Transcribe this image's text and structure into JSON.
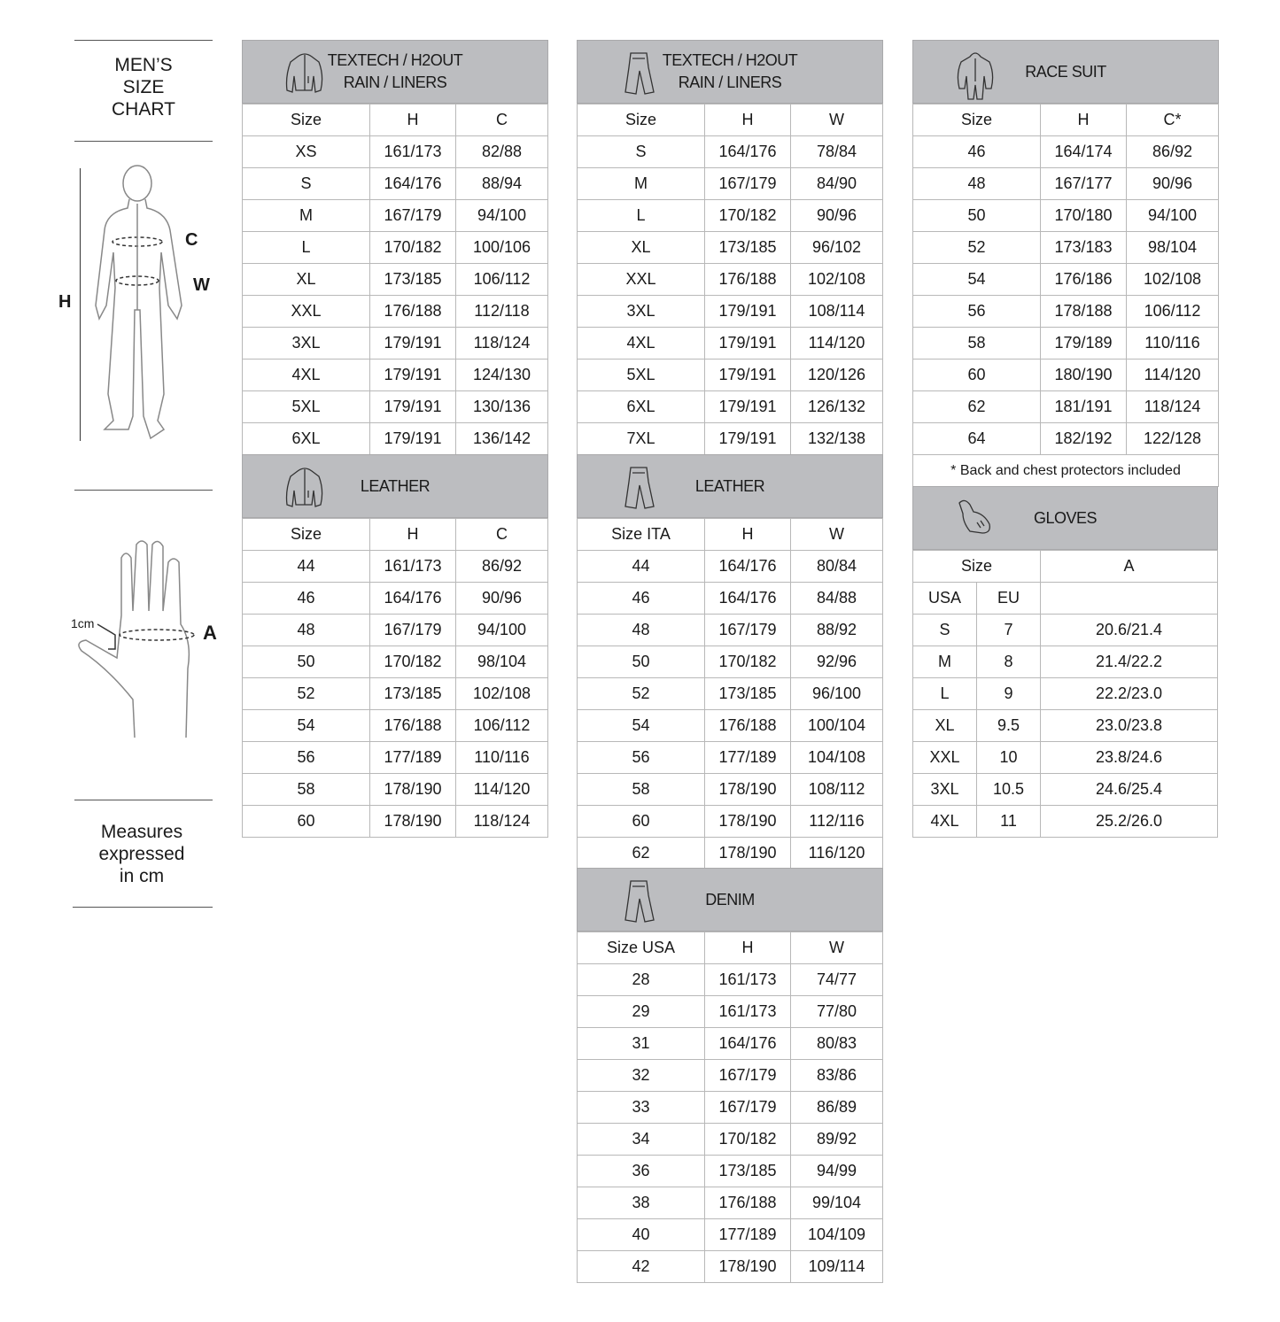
{
  "left": {
    "title": [
      "MEN’S",
      "SIZE",
      "CHART"
    ],
    "labels": {
      "h": "H",
      "c": "C",
      "w": "W",
      "a": "A",
      "cm": "1cm"
    },
    "measures": [
      "Measures",
      "expressed",
      "in cm"
    ]
  },
  "tables": [
    {
      "id": "textech-jacket",
      "icon": "jacket-icon",
      "title": [
        "TEXTECH / H2OUT",
        "RAIN / LINERS"
      ],
      "headers": [
        "Size",
        "H",
        "C"
      ],
      "rows": [
        [
          "XS",
          "161/173",
          "82/88"
        ],
        [
          "S",
          "164/176",
          "88/94"
        ],
        [
          "M",
          "167/179",
          "94/100"
        ],
        [
          "L",
          "170/182",
          "100/106"
        ],
        [
          "XL",
          "173/185",
          "106/112"
        ],
        [
          "XXL",
          "176/188",
          "112/118"
        ],
        [
          "3XL",
          "179/191",
          "118/124"
        ],
        [
          "4XL",
          "179/191",
          "124/130"
        ],
        [
          "5XL",
          "179/191",
          "130/136"
        ],
        [
          "6XL",
          "179/191",
          "136/142"
        ]
      ]
    },
    {
      "id": "leather-jacket",
      "icon": "jacket-icon",
      "title": [
        "LEATHER"
      ],
      "headers": [
        "Size",
        "H",
        "C"
      ],
      "rows": [
        [
          "44",
          "161/173",
          "86/92"
        ],
        [
          "46",
          "164/176",
          "90/96"
        ],
        [
          "48",
          "167/179",
          "94/100"
        ],
        [
          "50",
          "170/182",
          "98/104"
        ],
        [
          "52",
          "173/185",
          "102/108"
        ],
        [
          "54",
          "176/188",
          "106/112"
        ],
        [
          "56",
          "177/189",
          "110/116"
        ],
        [
          "58",
          "178/190",
          "114/120"
        ],
        [
          "60",
          "178/190",
          "118/124"
        ]
      ]
    },
    {
      "id": "textech-pants",
      "icon": "pants-icon",
      "title": [
        "TEXTECH / H2OUT",
        "RAIN / LINERS"
      ],
      "headers": [
        "Size",
        "H",
        "W"
      ],
      "rows": [
        [
          "S",
          "164/176",
          "78/84"
        ],
        [
          "M",
          "167/179",
          "84/90"
        ],
        [
          "L",
          "170/182",
          "90/96"
        ],
        [
          "XL",
          "173/185",
          "96/102"
        ],
        [
          "XXL",
          "176/188",
          "102/108"
        ],
        [
          "3XL",
          "179/191",
          "108/114"
        ],
        [
          "4XL",
          "179/191",
          "114/120"
        ],
        [
          "5XL",
          "179/191",
          "120/126"
        ],
        [
          "6XL",
          "179/191",
          "126/132"
        ],
        [
          "7XL",
          "179/191",
          "132/138"
        ]
      ]
    },
    {
      "id": "leather-pants",
      "icon": "pants-icon",
      "title": [
        "LEATHER"
      ],
      "headers": [
        "Size ITA",
        "H",
        "W"
      ],
      "rows": [
        [
          "44",
          "164/176",
          "80/84"
        ],
        [
          "46",
          "164/176",
          "84/88"
        ],
        [
          "48",
          "167/179",
          "88/92"
        ],
        [
          "50",
          "170/182",
          "92/96"
        ],
        [
          "52",
          "173/185",
          "96/100"
        ],
        [
          "54",
          "176/188",
          "100/104"
        ],
        [
          "56",
          "177/189",
          "104/108"
        ],
        [
          "58",
          "178/190",
          "108/112"
        ],
        [
          "60",
          "178/190",
          "112/116"
        ],
        [
          "62",
          "178/190",
          "116/120"
        ]
      ]
    },
    {
      "id": "denim",
      "icon": "pants-icon",
      "title": [
        "DENIM"
      ],
      "headers": [
        "Size  USA",
        "H",
        "W"
      ],
      "rows": [
        [
          "28",
          "161/173",
          "74/77"
        ],
        [
          "29",
          "161/173",
          "77/80"
        ],
        [
          "31",
          "164/176",
          "80/83"
        ],
        [
          "32",
          "167/179",
          "83/86"
        ],
        [
          "33",
          "167/179",
          "86/89"
        ],
        [
          "34",
          "170/182",
          "89/92"
        ],
        [
          "36",
          "173/185",
          "94/99"
        ],
        [
          "38",
          "176/188",
          "99/104"
        ],
        [
          "40",
          "177/189",
          "104/109"
        ],
        [
          "42",
          "178/190",
          "109/114"
        ]
      ]
    },
    {
      "id": "race-suit",
      "icon": "race-suit-icon",
      "title": [
        "RACE SUIT"
      ],
      "headers": [
        "Size",
        "H",
        "C*"
      ],
      "rows": [
        [
          "46",
          "164/174",
          "86/92"
        ],
        [
          "48",
          "167/177",
          "90/96"
        ],
        [
          "50",
          "170/180",
          "94/100"
        ],
        [
          "52",
          "173/183",
          "98/104"
        ],
        [
          "54",
          "176/186",
          "102/108"
        ],
        [
          "56",
          "178/188",
          "106/112"
        ],
        [
          "58",
          "179/189",
          "110/116"
        ],
        [
          "60",
          "180/190",
          "114/120"
        ],
        [
          "62",
          "181/191",
          "118/124"
        ],
        [
          "64",
          "182/192",
          "122/128"
        ]
      ],
      "note": "* Back and chest protectors included"
    }
  ],
  "gloves": {
    "title": "GLOVES",
    "icon": "glove-icon",
    "header": [
      "Size",
      "A"
    ],
    "subheader": [
      "USA",
      "EU"
    ],
    "rows": [
      [
        "S",
        "7",
        "20.6/21.4"
      ],
      [
        "M",
        "8",
        "21.4/22.2"
      ],
      [
        "L",
        "9",
        "22.2/23.0"
      ],
      [
        "XL",
        "9.5",
        "23.0/23.8"
      ],
      [
        "XXL",
        "10",
        "23.8/24.6"
      ],
      [
        "3XL",
        "10.5",
        "24.6/25.4"
      ],
      [
        "4XL",
        "11",
        "25.2/26.0"
      ]
    ]
  }
}
